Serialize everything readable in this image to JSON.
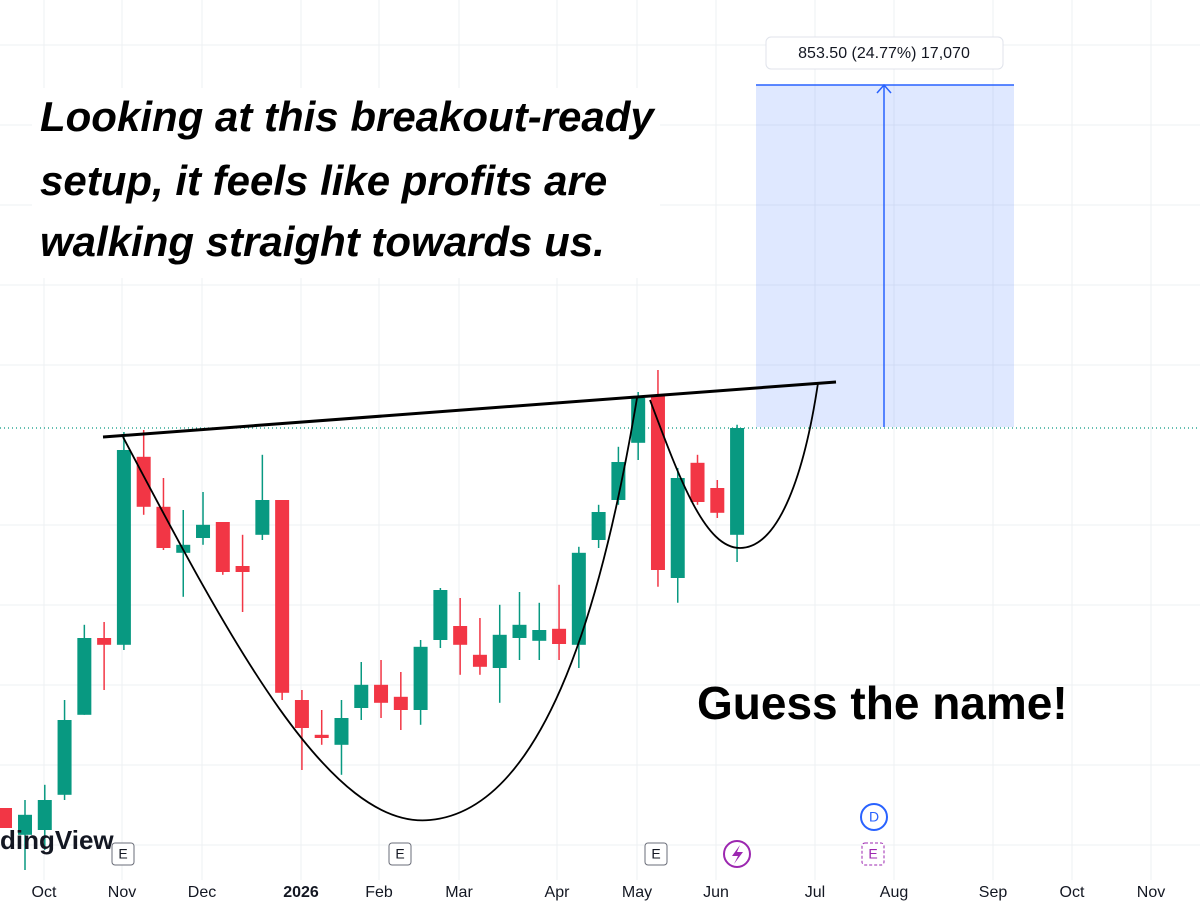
{
  "chart_data": {
    "type": "candlestick",
    "up_color": "#089981",
    "down_color": "#f23645",
    "ylim": [
      2314,
      4514
    ],
    "grid": true,
    "open": [
      2427,
      2439,
      2527,
      2727,
      2919,
      2902,
      3372,
      3247,
      3132,
      3169,
      3209,
      3099,
      3177,
      3264,
      2764,
      2677,
      2652,
      2744,
      2802,
      2772,
      2739,
      2914,
      2949,
      2877,
      2844,
      2919,
      2912,
      2942,
      2902,
      3164,
      3264,
      3407,
      3527,
      3069,
      3357,
      3294,
      3177
    ],
    "high": [
      2514,
      2552,
      2764,
      2952,
      2959,
      3434,
      3439,
      3319,
      3239,
      3284,
      3209,
      3177,
      3377,
      3264,
      2789,
      2739,
      2764,
      2859,
      2864,
      2834,
      2914,
      3044,
      3019,
      2969,
      3002,
      3034,
      3007,
      3052,
      3147,
      3252,
      3397,
      3534,
      3589,
      3344,
      3377,
      3314,
      3452
    ],
    "low": [
      2339,
      2389,
      2514,
      2727,
      2789,
      2889,
      3227,
      3139,
      3022,
      3152,
      3077,
      2984,
      3164,
      2764,
      2589,
      2652,
      2577,
      2714,
      2719,
      2689,
      2702,
      2894,
      2827,
      2827,
      2757,
      2864,
      2864,
      2864,
      2844,
      3144,
      3252,
      3364,
      3047,
      3007,
      3252,
      3219,
      3109
    ],
    "close": [
      2477,
      2514,
      2714,
      2919,
      2902,
      3389,
      3247,
      3144,
      3152,
      3202,
      3084,
      3084,
      3264,
      2782,
      2694,
      2669,
      2719,
      2802,
      2757,
      2739,
      2897,
      3039,
      2902,
      2847,
      2927,
      2952,
      2939,
      2904,
      3132,
      3234,
      3359,
      3519,
      3089,
      3319,
      3259,
      3232,
      3444
    ],
    "x_labels": [
      "Oct",
      "Nov",
      "Dec",
      "2026",
      "Feb",
      "Mar",
      "Apr",
      "May",
      "Jun",
      "Jul",
      "Aug",
      "Sep",
      "Oct",
      "Nov"
    ],
    "annotation_lines": [
      "Looking at this breakout-ready",
      "setup, it feels like profits are",
      "walking straight towards us."
    ],
    "callout": "Guess the name!",
    "measure_label": "853.50 (24.77%) 17,070",
    "watermark": "dingView",
    "events": [
      "E",
      "E",
      "E",
      "E",
      "D"
    ]
  }
}
